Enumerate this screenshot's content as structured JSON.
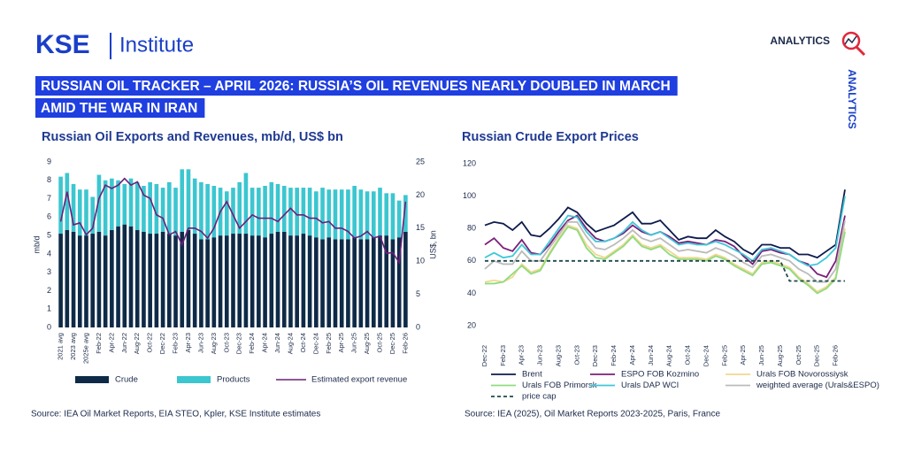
{
  "header": {
    "logo_kse": "KSE",
    "logo_institute": "Institute",
    "analytics": "ANALYTICS",
    "analytics_vertical": "ANALYTICS",
    "title_lines": [
      "RUSSIAN OIL TRACKER – APRIL 2026: RUSSIA’S OIL REVENUES NEARLY DOUBLED IN MARCH",
      "AMID THE WAR IN IRAN"
    ]
  },
  "chart_data": [
    {
      "type": "bar",
      "stacked": true,
      "title": "Russian Oil Exports and Revenues, mb/d, US$ bn",
      "ylabel": "mb/d",
      "y2label": "US$, bn",
      "categories": [
        "2021 avg",
        null,
        "2023 avg",
        null,
        "2025e avg",
        null,
        "Feb-22",
        null,
        "Apr-22",
        null,
        "Jun-22",
        null,
        "Aug-22",
        null,
        "Oct-22",
        null,
        "Dec-22",
        null,
        "Feb-23",
        null,
        "Apr-23",
        null,
        "Jun-23",
        null,
        "Aug-23",
        null,
        "Oct-23",
        null,
        "Dec-23",
        null,
        "Feb-24",
        null,
        "Apr-24",
        null,
        "Jun-24",
        null,
        "Aug-24",
        null,
        "Oct-24",
        null,
        "Dec-24",
        null,
        "Feb-25",
        null,
        "Apr-25",
        null,
        "Jun-25",
        null,
        "Aug-25",
        null,
        "Oct-25",
        null,
        "Dec-25",
        null,
        "Feb-26"
      ],
      "series": [
        {
          "name": "Crude",
          "type": "bar",
          "color": "#0e2a47",
          "values": [
            5.1,
            5.3,
            5.2,
            5.0,
            5.0,
            5.1,
            5.2,
            5.0,
            5.3,
            5.5,
            5.6,
            5.5,
            5.3,
            5.2,
            5.1,
            5.1,
            5.2,
            5.1,
            5.0,
            5.2,
            5.3,
            5.1,
            4.8,
            4.8,
            4.9,
            5.0,
            5.0,
            5.1,
            5.1,
            5.1,
            5.0,
            5.0,
            4.9,
            5.1,
            5.2,
            5.2,
            5.0,
            5.0,
            5.1,
            5.0,
            4.9,
            4.8,
            4.9,
            4.8,
            4.8,
            4.8,
            4.9,
            4.8,
            4.8,
            4.9,
            5.0,
            5.0,
            4.8,
            4.9,
            5.2
          ]
        },
        {
          "name": "Products",
          "type": "bar",
          "color": "#3cc6d0",
          "values": [
            3.1,
            3.1,
            2.6,
            2.5,
            2.5,
            2.0,
            3.1,
            3.0,
            2.8,
            2.5,
            2.2,
            2.6,
            2.6,
            2.5,
            2.8,
            2.7,
            2.4,
            2.8,
            2.6,
            3.4,
            3.3,
            3.0,
            3.1,
            3.0,
            2.8,
            2.6,
            2.4,
            2.5,
            2.8,
            3.3,
            2.6,
            2.6,
            2.8,
            2.8,
            2.6,
            2.5,
            2.6,
            2.6,
            2.5,
            2.6,
            2.5,
            2.8,
            2.6,
            2.7,
            2.7,
            2.7,
            2.8,
            2.7,
            2.6,
            2.5,
            2.6,
            2.3,
            2.5,
            2.0,
            2.0
          ]
        },
        {
          "name": "Estimated export revenue",
          "type": "line",
          "axis": "y2",
          "color": "#6a1f7a",
          "values": [
            16,
            20.5,
            15.5,
            15.8,
            14,
            15,
            19.5,
            21.5,
            21,
            21.5,
            22.5,
            21.5,
            22,
            20,
            19.5,
            17,
            16.5,
            14,
            14.5,
            12.5,
            15,
            15,
            14.5,
            13.5,
            15,
            17.5,
            19,
            17,
            15,
            16,
            17,
            16.5,
            16.5,
            16.5,
            16,
            17,
            18,
            17,
            17,
            16.5,
            16.5,
            15.8,
            16,
            15,
            15,
            14.5,
            13.5,
            13.8,
            14.5,
            13.5,
            13.8,
            11.2,
            11.3,
            9.8,
            19
          ]
        }
      ],
      "ylim": [
        0,
        9
      ],
      "yticks": [
        0,
        1,
        2,
        3,
        4,
        5,
        6,
        7,
        8,
        9
      ],
      "y2lim": [
        0,
        25
      ],
      "y2ticks": [
        0,
        5,
        10,
        15,
        20,
        25
      ],
      "source": "Source: IEA Oil Market Reports, EIA STEO, Kpler, KSE Institute estimates"
    },
    {
      "type": "line",
      "title": "Russian Crude Export Prices",
      "categories": [
        "Dec-22",
        null,
        "Feb-23",
        null,
        "Apr-23",
        null,
        "Jun-23",
        null,
        "Aug-23",
        null,
        "Oct-23",
        null,
        "Dec-23",
        null,
        "Feb-24",
        null,
        "Apr-24",
        null,
        "Jun-24",
        null,
        "Aug-24",
        null,
        "Oct-24",
        null,
        "Dec-24",
        null,
        "Feb-25",
        null,
        "Apr-25",
        null,
        "Jun-25",
        null,
        "Aug-25",
        null,
        "Oct-25",
        null,
        "Dec-25",
        null,
        "Feb-26",
        null
      ],
      "series": [
        {
          "name": "Brent",
          "color": "#0d1b4c",
          "values": [
            82,
            84,
            83,
            79,
            84,
            76,
            75,
            80,
            86,
            93,
            90,
            83,
            78,
            80,
            82,
            86,
            90,
            83,
            83,
            85,
            79,
            73,
            75,
            74,
            74,
            79,
            75,
            72,
            67,
            64,
            70,
            70,
            68,
            68,
            64,
            64,
            62,
            66,
            70,
            104
          ]
        },
        {
          "name": "ESPO FOB Kozmino",
          "color": "#7b1f7a",
          "values": [
            70,
            74,
            68,
            66,
            73,
            65,
            64,
            70,
            78,
            85,
            88,
            80,
            74,
            72,
            74,
            77,
            82,
            78,
            76,
            78,
            75,
            71,
            72,
            71,
            70,
            73,
            72,
            69,
            63,
            58,
            66,
            67,
            65,
            64,
            60,
            58,
            52,
            50,
            60,
            88
          ]
        },
        {
          "name": "Urals FOB Novorossiysk",
          "color": "#f0d890",
          "values": [
            47,
            48,
            47,
            50,
            58,
            53,
            55,
            65,
            74,
            82,
            80,
            70,
            64,
            62,
            66,
            70,
            76,
            70,
            68,
            70,
            66,
            62,
            62,
            62,
            61,
            64,
            62,
            58,
            55,
            52,
            59,
            60,
            58,
            56,
            50,
            46,
            41,
            44,
            50,
            80
          ]
        },
        {
          "name": "Urals FOB Primorsk",
          "color": "#8fdc7f",
          "values": [
            46,
            46,
            47,
            52,
            57,
            52,
            54,
            64,
            73,
            81,
            79,
            68,
            62,
            61,
            65,
            69,
            75,
            69,
            67,
            69,
            64,
            61,
            61,
            61,
            60,
            63,
            61,
            57,
            54,
            51,
            58,
            59,
            57,
            55,
            49,
            45,
            40,
            43,
            49,
            78
          ]
        },
        {
          "name": "Urals DAP WCI",
          "color": "#3fc8d8",
          "values": [
            62,
            65,
            62,
            63,
            70,
            64,
            64,
            72,
            80,
            88,
            87,
            78,
            72,
            72,
            74,
            78,
            84,
            79,
            76,
            78,
            74,
            70,
            71,
            70,
            70,
            72,
            70,
            67,
            64,
            60,
            67,
            68,
            66,
            64,
            60,
            57,
            58,
            62,
            68,
            100
          ]
        },
        {
          "name": "weighted average (Urals&ESPO)",
          "color": "#bbbbbb",
          "values": [
            55,
            60,
            58,
            58,
            66,
            60,
            60,
            68,
            76,
            84,
            84,
            75,
            68,
            67,
            70,
            74,
            79,
            74,
            72,
            74,
            70,
            66,
            67,
            66,
            65,
            68,
            66,
            63,
            59,
            56,
            63,
            64,
            62,
            60,
            55,
            52,
            47,
            47,
            55,
            85
          ]
        },
        {
          "name": "price cap",
          "color": "#1e4a4a",
          "dashed": true,
          "values": [
            60,
            60,
            60,
            60,
            60,
            60,
            60,
            60,
            60,
            60,
            60,
            60,
            60,
            60,
            60,
            60,
            60,
            60,
            60,
            60,
            60,
            60,
            60,
            60,
            60,
            60,
            60,
            60,
            60,
            60,
            60,
            60,
            60,
            47.6,
            47.6,
            47.6,
            47.6,
            47.6,
            47.6,
            47.6
          ]
        }
      ],
      "ylim": [
        20,
        120
      ],
      "yticks": [
        20,
        40,
        60,
        80,
        100,
        120
      ],
      "source": "Source: IEA (2025), Oil Market Reports 2023-2025, Paris, France"
    }
  ]
}
